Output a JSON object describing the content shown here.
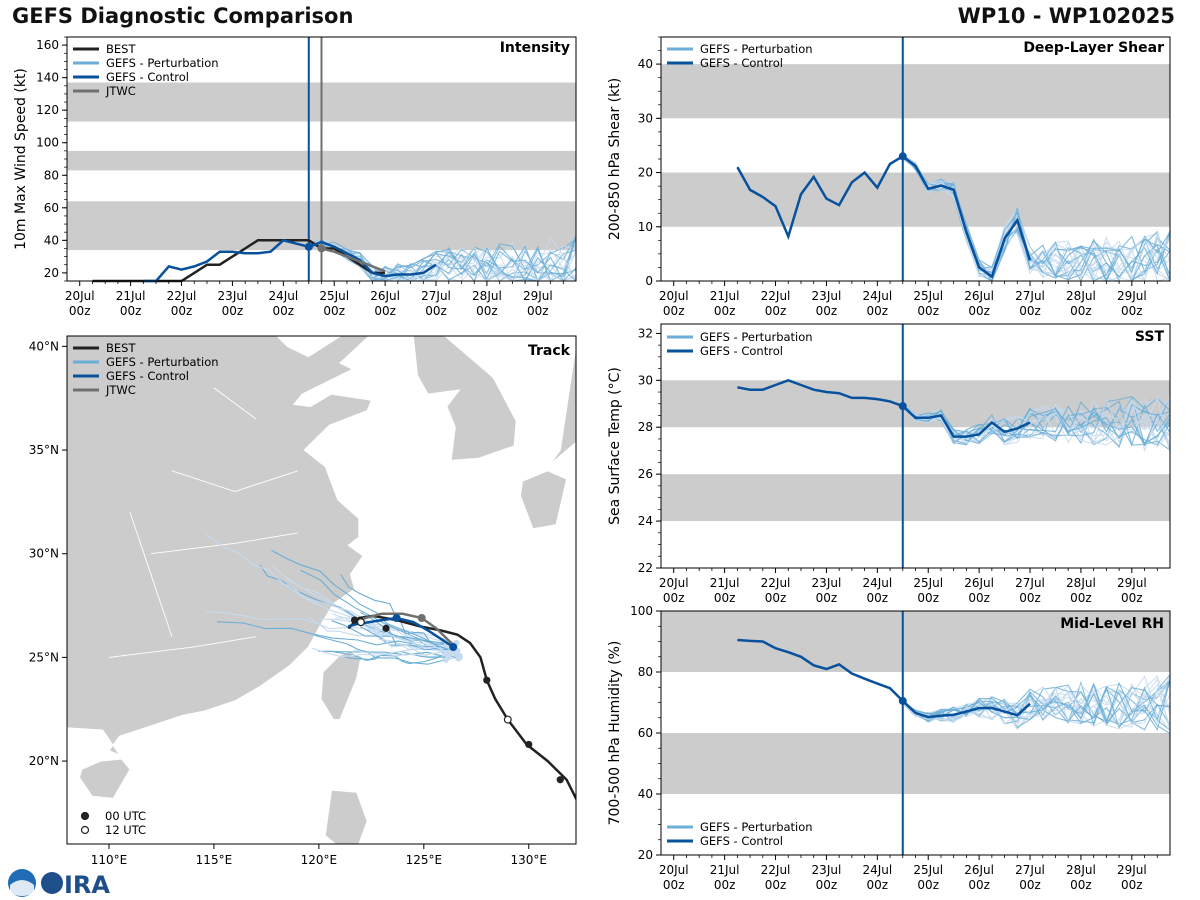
{
  "header": {
    "title": "GEFS Diagnostic Comparison",
    "storm": "WP10 - WP102025"
  },
  "colors": {
    "best": "#222222",
    "pert": "#6baed6",
    "pert_light": "#c6dbef",
    "control": "#08519c",
    "jtwc": "#707070",
    "band": "#cccccc",
    "land": "#cccccc"
  },
  "time_ticks": [
    {
      "day": "20Jul",
      "hour": "00z"
    },
    {
      "day": "21Jul",
      "hour": "00z"
    },
    {
      "day": "22Jul",
      "hour": "00z"
    },
    {
      "day": "23Jul",
      "hour": "00z"
    },
    {
      "day": "24Jul",
      "hour": "00z"
    },
    {
      "day": "25Jul",
      "hour": "00z"
    },
    {
      "day": "26Jul",
      "hour": "00z"
    },
    {
      "day": "27Jul",
      "hour": "00z"
    },
    {
      "day": "28Jul",
      "hour": "00z"
    },
    {
      "day": "29Jul",
      "hour": "00z"
    }
  ],
  "chart_data": [
    {
      "type": "line",
      "id": "intensity",
      "title": "Intensity",
      "ylabel": "10m Max Wind Speed (kt)",
      "ylim": [
        15,
        165
      ],
      "xlim": [
        -0.25,
        9.75
      ],
      "yticks": [
        20,
        40,
        60,
        80,
        100,
        120,
        140,
        160
      ],
      "bands": [
        [
          34,
          64
        ],
        [
          83,
          95
        ],
        [
          113,
          137
        ]
      ],
      "init_time": 4.5,
      "jtwc_time": 4.75,
      "legend": [
        "BEST",
        "GEFS - Perturbation",
        "GEFS - Control",
        "JTWC"
      ],
      "series": [
        {
          "name": "BEST",
          "x": [
            0.25,
            0.5,
            0.75,
            1.0,
            1.25,
            1.5,
            1.75,
            2.0,
            2.25,
            2.5,
            2.75,
            3.0,
            3.25,
            3.5,
            3.75,
            4.0,
            4.25,
            4.5,
            4.75,
            5.0,
            5.25,
            5.5,
            5.75,
            6.0
          ],
          "y": [
            15,
            15,
            15,
            15,
            15,
            15,
            15,
            15,
            20,
            25,
            25,
            30,
            35,
            40,
            40,
            40,
            40,
            40,
            35,
            35,
            30,
            25,
            20,
            20
          ]
        },
        {
          "name": "GEFS - Control",
          "x": [
            1.25,
            1.5,
            1.75,
            2.0,
            2.25,
            2.5,
            2.75,
            3.0,
            3.25,
            3.5,
            3.75,
            4.0,
            4.25,
            4.5,
            4.75,
            5.0,
            5.25,
            5.5,
            5.75,
            6.0,
            6.25,
            6.5,
            6.75,
            7.0
          ],
          "y": [
            15,
            15,
            24,
            22,
            24,
            27,
            33,
            33,
            32,
            32,
            33,
            40,
            38,
            36,
            39,
            36,
            32,
            28,
            20,
            18,
            19,
            19,
            20,
            25
          ]
        },
        {
          "name": "JTWC",
          "x": [
            4.75,
            5.0,
            5.25,
            5.5,
            5.75,
            6.0
          ],
          "y": [
            35,
            33,
            30,
            27,
            24,
            21
          ]
        }
      ]
    },
    {
      "type": "line",
      "id": "shear",
      "title": "Deep-Layer Shear",
      "ylabel": "200-850 hPa Shear (kt)",
      "ylim": [
        0,
        45
      ],
      "xlim": [
        -0.25,
        9.75
      ],
      "yticks": [
        0,
        10,
        20,
        30,
        40
      ],
      "bands": [
        [
          10,
          20
        ],
        [
          30,
          40
        ]
      ],
      "init_time": 4.5,
      "legend": [
        "GEFS - Perturbation",
        "GEFS - Control"
      ],
      "series": [
        {
          "name": "GEFS - Control",
          "x": [
            1.25,
            1.5,
            1.75,
            2.0,
            2.25,
            2.5,
            2.75,
            3.0,
            3.25,
            3.5,
            3.75,
            4.0,
            4.25,
            4.5,
            4.75,
            5.0,
            5.25,
            5.5,
            5.75,
            6.0,
            6.25,
            6.5,
            6.75,
            7.0
          ],
          "y": [
            21,
            16.8,
            15.5,
            13.8,
            8.2,
            16.0,
            19.2,
            15.2,
            14.0,
            18.2,
            20.0,
            17.2,
            21.6,
            23.0,
            21.2,
            17.0,
            17.6,
            16.8,
            9.0,
            2.5,
            0.8,
            7.8,
            11.2,
            3.8
          ]
        }
      ]
    },
    {
      "type": "line",
      "id": "sst",
      "title": "SST",
      "ylabel": "Sea Surface Temp (°C)",
      "ylim": [
        22,
        32.4
      ],
      "xlim": [
        -0.25,
        9.75
      ],
      "yticks": [
        22,
        24,
        26,
        28,
        30,
        32
      ],
      "bands": [
        [
          24,
          26
        ],
        [
          28,
          30
        ]
      ],
      "init_time": 4.5,
      "legend": [
        "GEFS - Perturbation",
        "GEFS - Control"
      ],
      "series": [
        {
          "name": "GEFS - Control",
          "x": [
            1.25,
            1.5,
            1.75,
            2.0,
            2.25,
            2.5,
            2.75,
            3.0,
            3.25,
            3.5,
            3.75,
            4.0,
            4.25,
            4.5,
            4.75,
            5.0,
            5.25,
            5.5,
            5.75,
            6.0,
            6.25,
            6.5,
            6.75,
            7.0
          ],
          "y": [
            29.7,
            29.6,
            29.6,
            29.8,
            30.0,
            29.8,
            29.6,
            29.5,
            29.45,
            29.25,
            29.25,
            29.2,
            29.1,
            28.9,
            28.4,
            28.4,
            28.5,
            27.6,
            27.6,
            27.7,
            28.2,
            27.8,
            27.95,
            28.2
          ]
        }
      ]
    },
    {
      "type": "line",
      "id": "rh",
      "title": "Mid-Level RH",
      "ylabel": "700-500 hPa Humidity (%)",
      "ylim": [
        20,
        100
      ],
      "xlim": [
        -0.25,
        9.75
      ],
      "yticks": [
        20,
        40,
        60,
        80,
        100
      ],
      "bands": [
        [
          40,
          60
        ],
        [
          80,
          100
        ]
      ],
      "init_time": 4.5,
      "legend": [
        "GEFS - Perturbation",
        "GEFS - Control"
      ],
      "series": [
        {
          "name": "GEFS - Control",
          "x": [
            1.25,
            1.5,
            1.75,
            2.0,
            2.25,
            2.5,
            2.75,
            3.0,
            3.25,
            3.5,
            3.75,
            4.0,
            4.25,
            4.5,
            4.75,
            5.0,
            5.25,
            5.5,
            5.75,
            6.0,
            6.25,
            6.5,
            6.75,
            7.0
          ],
          "y": [
            90.5,
            90.2,
            90.0,
            87.8,
            86.5,
            85.0,
            82.2,
            81.0,
            82.5,
            79.5,
            77.8,
            76.2,
            74.7,
            70.5,
            66.6,
            65.2,
            65.7,
            66.0,
            67.0,
            68.2,
            68.2,
            67.0,
            65.8,
            69.6
          ]
        }
      ]
    },
    {
      "type": "scatter",
      "id": "track",
      "title": "Track",
      "lon_range": [
        108,
        132.25
      ],
      "lat_range": [
        16,
        40.5
      ],
      "xtick_labels": [
        {
          "v": 110,
          "label": "110°E"
        },
        {
          "v": 115,
          "label": "115°E"
        },
        {
          "v": 120,
          "label": "120°E"
        },
        {
          "v": 125,
          "label": "125°E"
        },
        {
          "v": 130,
          "label": "130°E"
        }
      ],
      "ytick_labels": [
        {
          "v": 20,
          "label": "20°N"
        },
        {
          "v": 25,
          "label": "25°N"
        },
        {
          "v": 30,
          "label": "30°N"
        },
        {
          "v": 35,
          "label": "35°N"
        },
        {
          "v": 40,
          "label": "40°N"
        }
      ],
      "legend": [
        "BEST",
        "GEFS - Perturbation",
        "GEFS - Control",
        "JTWC"
      ],
      "marker_legend": [
        "00 UTC",
        "12 UTC"
      ],
      "best_track": {
        "lon": [
          132.4,
          131.8,
          130.9,
          129.9,
          129.0,
          128.4,
          128.0,
          127.7,
          127.2,
          126.6,
          125.8,
          124.8,
          123.7,
          122.6,
          121.9,
          121.6,
          121.4
        ],
        "lat": [
          17.9,
          19.1,
          20.0,
          20.8,
          22.0,
          23.0,
          23.9,
          25.0,
          25.7,
          26.1,
          26.3,
          26.5,
          26.8,
          27.0,
          26.9,
          26.6,
          26.4
        ]
      },
      "best_markers_00": [
        {
          "lon": 131.5,
          "lat": 19.1
        },
        {
          "lon": 130.0,
          "lat": 20.8
        },
        {
          "lon": 128.0,
          "lat": 23.9
        },
        {
          "lon": 123.2,
          "lat": 26.4
        },
        {
          "lon": 121.7,
          "lat": 26.8
        }
      ],
      "best_markers_12": [
        {
          "lon": 129.0,
          "lat": 22.0
        },
        {
          "lon": 122.0,
          "lat": 26.7
        }
      ],
      "control_track": {
        "lon": [
          126.4,
          125.8,
          125.2,
          124.5,
          123.7,
          123.0,
          122.4,
          121.8,
          121.4
        ],
        "lat": [
          25.5,
          25.9,
          26.3,
          26.7,
          26.9,
          26.8,
          26.7,
          26.6,
          26.5
        ]
      },
      "control_markers": [
        {
          "lon": 126.4,
          "lat": 25.5
        },
        {
          "lon": 123.7,
          "lat": 26.9
        }
      ],
      "jtwc_track": {
        "lon": [
          126.4,
          125.6,
          124.9,
          124.0,
          123.0,
          122.2,
          121.7
        ],
        "lat": [
          25.6,
          26.4,
          26.9,
          27.1,
          27.1,
          26.9,
          26.6
        ]
      },
      "jtwc_markers": [
        {
          "lon": 124.9,
          "lat": 26.9
        }
      ]
    }
  ]
}
